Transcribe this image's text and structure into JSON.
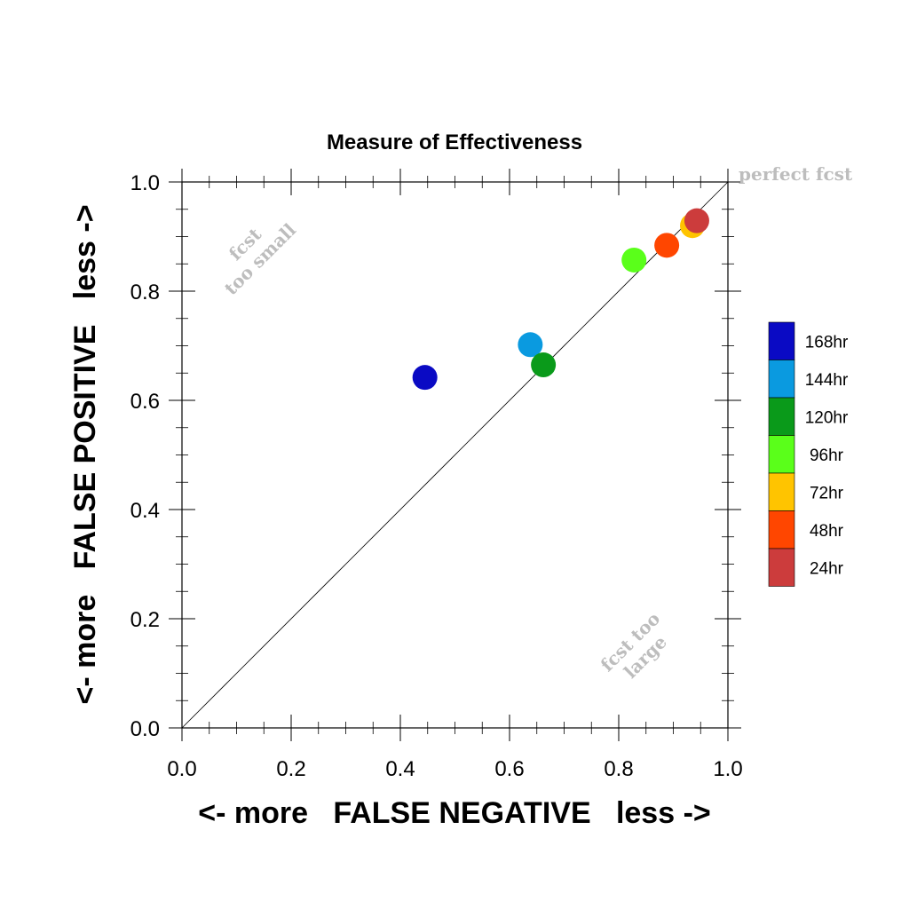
{
  "chart_data": {
    "type": "scatter",
    "title": "Measure of Effectiveness",
    "xlabel": "<- more   FALSE NEGATIVE   less ->",
    "ylabel": "<- more   FALSE POSITIVE   less ->",
    "xlim": [
      0,
      1
    ],
    "ylim": [
      0,
      1
    ],
    "xticks": [
      "0.0",
      "0.2",
      "0.4",
      "0.6",
      "0.8",
      "1.0"
    ],
    "yticks": [
      "0.0",
      "0.2",
      "0.4",
      "0.6",
      "0.8",
      "1.0"
    ],
    "grid": false,
    "diagonal_reference_line": true,
    "annotations": {
      "perfect": "perfect fcst",
      "too_small": [
        "fcst",
        "too small"
      ],
      "too_large": [
        "fcst too",
        "large"
      ]
    },
    "legend_position": "right",
    "points": [
      {
        "label": "168hr",
        "x": 0.445,
        "y": 0.642,
        "color": "#0a0ac4"
      },
      {
        "label": "144hr",
        "x": 0.638,
        "y": 0.702,
        "color": "#0a9ae0"
      },
      {
        "label": "120hr",
        "x": 0.662,
        "y": 0.665,
        "color": "#0a9a1a"
      },
      {
        "label": "96hr",
        "x": 0.828,
        "y": 0.857,
        "color": "#5aff1a"
      },
      {
        "label": "72hr",
        "x": 0.935,
        "y": 0.92,
        "color": "#ffc400"
      },
      {
        "label": "48hr",
        "x": 0.888,
        "y": 0.884,
        "color": "#ff4600"
      },
      {
        "label": "24hr",
        "x": 0.943,
        "y": 0.929,
        "color": "#cc3c3c"
      }
    ],
    "legend": [
      {
        "label": "168hr",
        "color": "#0a0ac4"
      },
      {
        "label": "144hr",
        "color": "#0a9ae0"
      },
      {
        "label": "120hr",
        "color": "#0a9a1a"
      },
      {
        "label": "96hr",
        "color": "#5aff1a"
      },
      {
        "label": "72hr",
        "color": "#ffc400"
      },
      {
        "label": "48hr",
        "color": "#ff4600"
      },
      {
        "label": "24hr",
        "color": "#cc3c3c"
      }
    ]
  }
}
